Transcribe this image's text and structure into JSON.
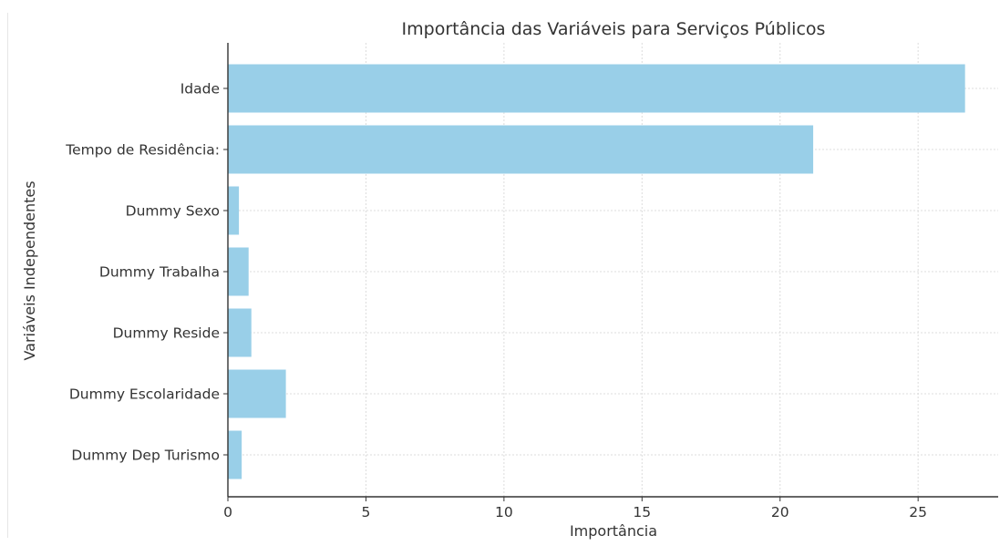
{
  "chart_data": {
    "type": "bar",
    "orientation": "horizontal",
    "title": "Importância das Variáveis para Serviços Públicos",
    "xlabel": "Importância",
    "ylabel": "Variáveis Independentes",
    "categories": [
      "Idade",
      "Tempo de Residência:",
      "Dummy Sexo",
      "Dummy Trabalha",
      "Dummy Reside",
      "Dummy Escolaridade",
      "Dummy Dep Turismo"
    ],
    "values": [
      26.7,
      21.2,
      0.4,
      0.75,
      0.85,
      2.1,
      0.5
    ],
    "xlim": [
      0,
      27.9
    ],
    "xticks": [
      0,
      5,
      10,
      15,
      20,
      25
    ],
    "grid": true,
    "bar_color": "#99cfe8"
  }
}
